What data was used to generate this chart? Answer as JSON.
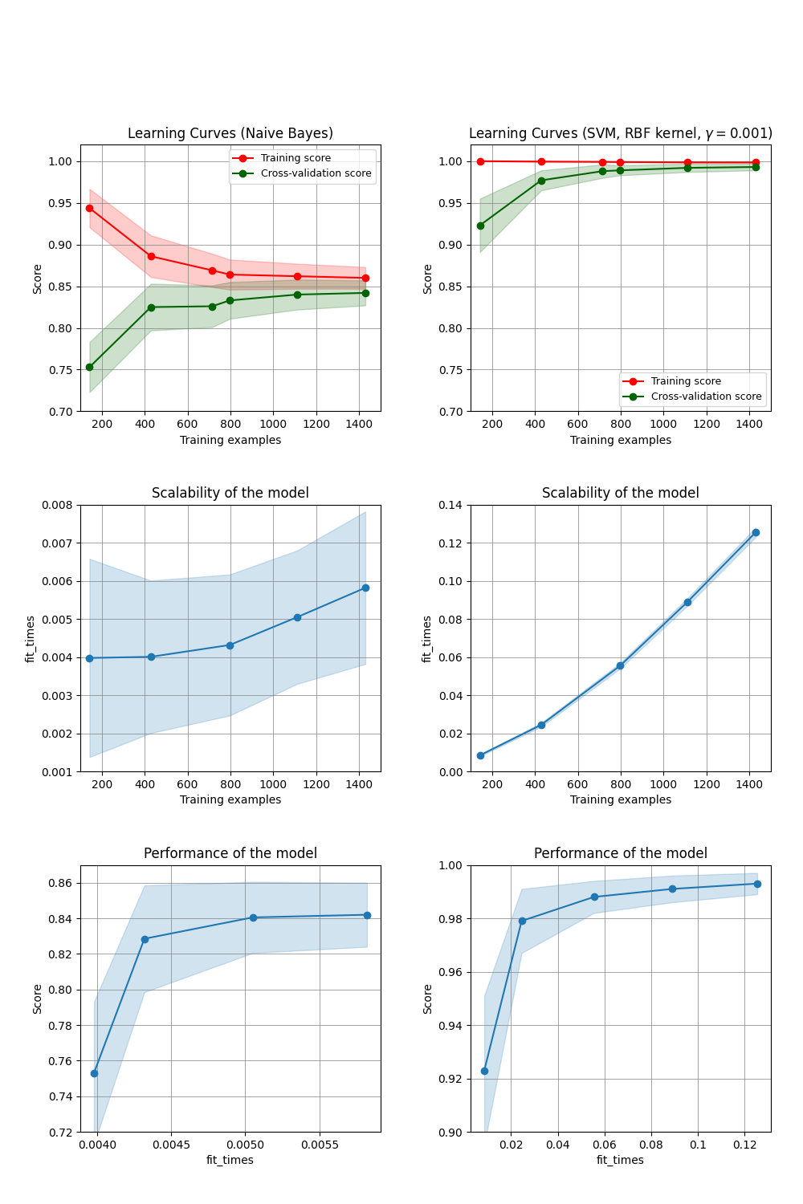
{
  "train_sizes": [
    143,
    429,
    715,
    797,
    1111,
    1429
  ],
  "nb_train_mean": [
    0.9437,
    0.886,
    0.869,
    0.864,
    0.862,
    0.86
  ],
  "nb_train_std": [
    0.023,
    0.025,
    0.02,
    0.018,
    0.015,
    0.013
  ],
  "nb_cv_mean": [
    0.753,
    0.825,
    0.826,
    0.833,
    0.84,
    0.842
  ],
  "nb_cv_std": [
    0.03,
    0.028,
    0.025,
    0.022,
    0.018,
    0.015
  ],
  "svm_train_mean": [
    1.0,
    0.9995,
    0.9992,
    0.999,
    0.9986,
    0.9985
  ],
  "svm_train_std": [
    0.0002,
    0.0003,
    0.0003,
    0.0003,
    0.0003,
    0.0003
  ],
  "svm_cv_mean": [
    0.923,
    0.977,
    0.988,
    0.989,
    0.992,
    0.993
  ],
  "svm_cv_std": [
    0.032,
    0.012,
    0.008,
    0.006,
    0.005,
    0.004
  ],
  "nb_fit_sizes": [
    143,
    429,
    797,
    1111,
    1429
  ],
  "nb_fit_times_mean": [
    0.00398,
    0.00401,
    0.00432,
    0.00505,
    0.00582
  ],
  "nb_fit_times_std": [
    0.0026,
    0.002,
    0.00185,
    0.00175,
    0.002
  ],
  "svm_fit_sizes": [
    143,
    429,
    797,
    1111,
    1429
  ],
  "svm_fit_times_mean": [
    0.0085,
    0.0245,
    0.0555,
    0.089,
    0.1255
  ],
  "svm_fit_times_std": [
    0.0005,
    0.001,
    0.0015,
    0.002,
    0.0025
  ],
  "nb_perf_fit_times": [
    0.00398,
    0.00432,
    0.00505,
    0.00582
  ],
  "nb_perf_cv_mean": [
    0.753,
    0.8285,
    0.8405,
    0.842
  ],
  "nb_perf_cv_std": [
    0.04,
    0.03,
    0.02,
    0.018
  ],
  "svm_perf_fit_times": [
    0.0085,
    0.0245,
    0.0555,
    0.089,
    0.1255
  ],
  "svm_perf_cv_mean": [
    0.923,
    0.979,
    0.988,
    0.991,
    0.993
  ],
  "svm_perf_cv_std": [
    0.028,
    0.012,
    0.006,
    0.005,
    0.004
  ],
  "title_nb": "Learning Curves (Naive Bayes)",
  "title_svm": "Learning Curves (SVM, RBF kernel, $\\gamma = 0.001$)",
  "title_scale": "Scalability of the model",
  "title_perf": "Performance of the model",
  "xlabel_train": "Training examples",
  "ylabel_score": "Score",
  "ylabel_fit": "fit_times",
  "xlabel_fit": "fit_times",
  "red_color": "#ff0000",
  "green_color": "#006400",
  "blue_color": "#1f77b4"
}
